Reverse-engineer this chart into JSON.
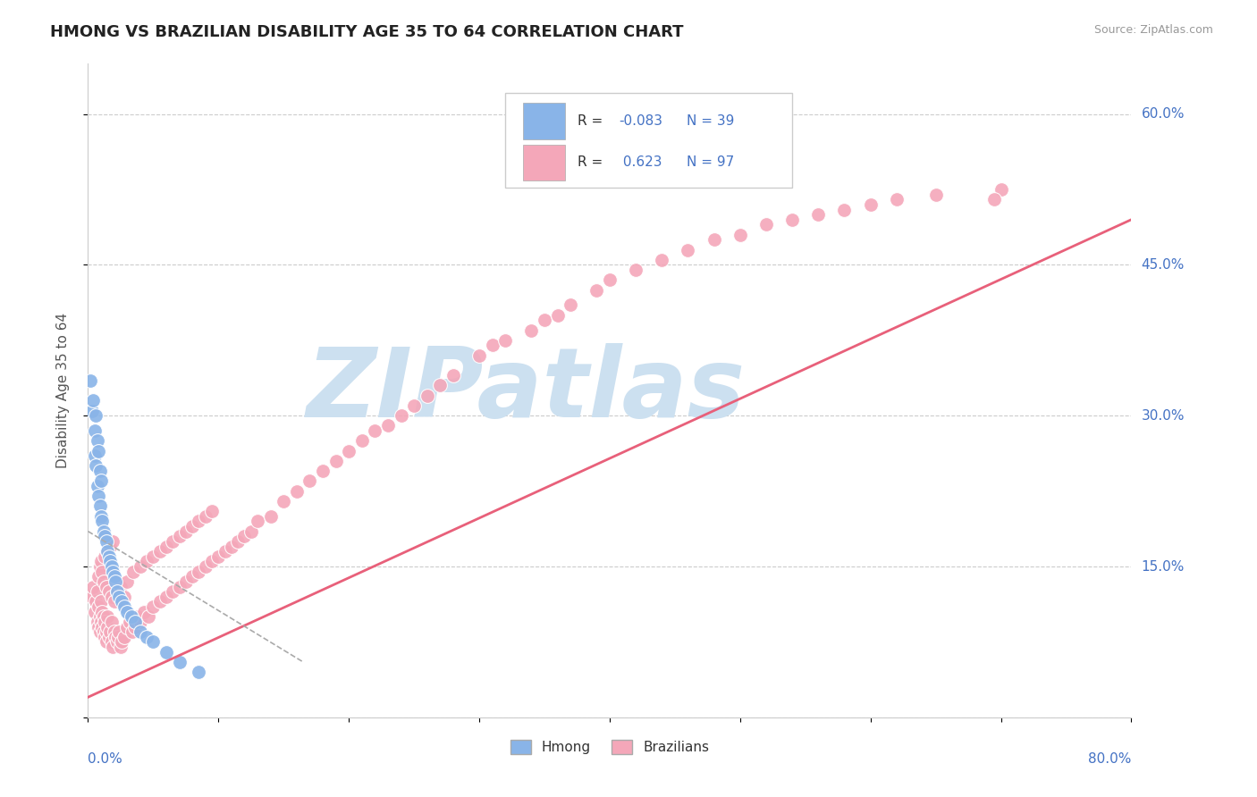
{
  "title": "HMONG VS BRAZILIAN DISABILITY AGE 35 TO 64 CORRELATION CHART",
  "source": "Source: ZipAtlas.com",
  "ylabel": "Disability Age 35 to 64",
  "legend_label1": "Hmong",
  "legend_label2": "Brazilians",
  "r1": "-0.083",
  "n1": "39",
  "r2": "0.623",
  "n2": "97",
  "xmin": 0.0,
  "xmax": 0.8,
  "ymin": 0.0,
  "ymax": 0.65,
  "color_hmong": "#89b4e8",
  "color_brazilian": "#f4a7b9",
  "color_hmong_line": "#aaaaaa",
  "color_brazilian_line": "#e8607a",
  "watermark": "ZIPatlas",
  "watermark_color": "#cce0f0",
  "background_color": "#ffffff",
  "hmong_scatter_x": [
    0.002,
    0.003,
    0.004,
    0.005,
    0.005,
    0.006,
    0.006,
    0.007,
    0.007,
    0.008,
    0.008,
    0.009,
    0.009,
    0.01,
    0.01,
    0.011,
    0.012,
    0.013,
    0.014,
    0.015,
    0.016,
    0.017,
    0.018,
    0.019,
    0.02,
    0.021,
    0.022,
    0.024,
    0.026,
    0.028,
    0.03,
    0.033,
    0.036,
    0.04,
    0.045,
    0.05,
    0.06,
    0.07,
    0.085
  ],
  "hmong_scatter_y": [
    0.335,
    0.305,
    0.315,
    0.285,
    0.26,
    0.3,
    0.25,
    0.275,
    0.23,
    0.265,
    0.22,
    0.245,
    0.21,
    0.235,
    0.2,
    0.195,
    0.185,
    0.18,
    0.175,
    0.165,
    0.16,
    0.155,
    0.15,
    0.145,
    0.14,
    0.135,
    0.125,
    0.12,
    0.115,
    0.11,
    0.105,
    0.1,
    0.095,
    0.085,
    0.08,
    0.075,
    0.065,
    0.055,
    0.045
  ],
  "brazilian_scatter_x": [
    0.003,
    0.004,
    0.005,
    0.006,
    0.007,
    0.007,
    0.008,
    0.008,
    0.009,
    0.009,
    0.01,
    0.01,
    0.011,
    0.011,
    0.012,
    0.012,
    0.013,
    0.013,
    0.014,
    0.014,
    0.015,
    0.015,
    0.016,
    0.017,
    0.018,
    0.018,
    0.019,
    0.02,
    0.021,
    0.022,
    0.023,
    0.024,
    0.025,
    0.026,
    0.028,
    0.03,
    0.032,
    0.034,
    0.036,
    0.038,
    0.04,
    0.043,
    0.046,
    0.05,
    0.055,
    0.06,
    0.065,
    0.07,
    0.075,
    0.08,
    0.085,
    0.09,
    0.095,
    0.1,
    0.105,
    0.11,
    0.115,
    0.12,
    0.125,
    0.13,
    0.14,
    0.15,
    0.16,
    0.17,
    0.18,
    0.19,
    0.2,
    0.21,
    0.22,
    0.23,
    0.24,
    0.25,
    0.26,
    0.27,
    0.28,
    0.3,
    0.31,
    0.32,
    0.34,
    0.35,
    0.36,
    0.37,
    0.39,
    0.4,
    0.42,
    0.44,
    0.46,
    0.48,
    0.5,
    0.52,
    0.54,
    0.56,
    0.58,
    0.6,
    0.62,
    0.65,
    0.7
  ],
  "brazilian_scatter_y": [
    0.12,
    0.13,
    0.105,
    0.115,
    0.095,
    0.125,
    0.09,
    0.11,
    0.1,
    0.085,
    0.095,
    0.115,
    0.09,
    0.105,
    0.085,
    0.1,
    0.08,
    0.095,
    0.085,
    0.075,
    0.09,
    0.1,
    0.08,
    0.085,
    0.075,
    0.095,
    0.07,
    0.085,
    0.08,
    0.075,
    0.08,
    0.085,
    0.07,
    0.075,
    0.08,
    0.09,
    0.095,
    0.085,
    0.09,
    0.1,
    0.095,
    0.105,
    0.1,
    0.11,
    0.115,
    0.12,
    0.125,
    0.13,
    0.135,
    0.14,
    0.145,
    0.15,
    0.155,
    0.16,
    0.165,
    0.17,
    0.175,
    0.18,
    0.185,
    0.195,
    0.2,
    0.215,
    0.225,
    0.235,
    0.245,
    0.255,
    0.265,
    0.275,
    0.285,
    0.29,
    0.3,
    0.31,
    0.32,
    0.33,
    0.34,
    0.36,
    0.37,
    0.375,
    0.385,
    0.395,
    0.4,
    0.41,
    0.425,
    0.435,
    0.445,
    0.455,
    0.465,
    0.475,
    0.48,
    0.49,
    0.495,
    0.5,
    0.505,
    0.51,
    0.515,
    0.52,
    0.525
  ],
  "braz_extra_x": [
    0.008,
    0.009,
    0.01,
    0.011,
    0.012,
    0.013,
    0.014,
    0.015,
    0.016,
    0.017,
    0.018,
    0.019,
    0.02,
    0.022,
    0.025,
    0.028,
    0.03,
    0.035,
    0.04,
    0.045,
    0.05,
    0.055,
    0.06,
    0.065,
    0.07,
    0.075,
    0.08,
    0.085,
    0.09,
    0.095
  ],
  "braz_extra_y": [
    0.14,
    0.15,
    0.155,
    0.145,
    0.135,
    0.16,
    0.13,
    0.165,
    0.125,
    0.17,
    0.12,
    0.175,
    0.115,
    0.125,
    0.13,
    0.12,
    0.135,
    0.145,
    0.15,
    0.155,
    0.16,
    0.165,
    0.17,
    0.175,
    0.18,
    0.185,
    0.19,
    0.195,
    0.2,
    0.205
  ],
  "braz_outlier_x": [
    0.695
  ],
  "braz_outlier_y": [
    0.515
  ],
  "braz_line_x0": 0.0,
  "braz_line_x1": 0.8,
  "braz_line_y0": 0.02,
  "braz_line_y1": 0.495,
  "hmong_line_x0": 0.0,
  "hmong_line_x1": 0.165,
  "hmong_line_y0": 0.185,
  "hmong_line_y1": 0.055
}
